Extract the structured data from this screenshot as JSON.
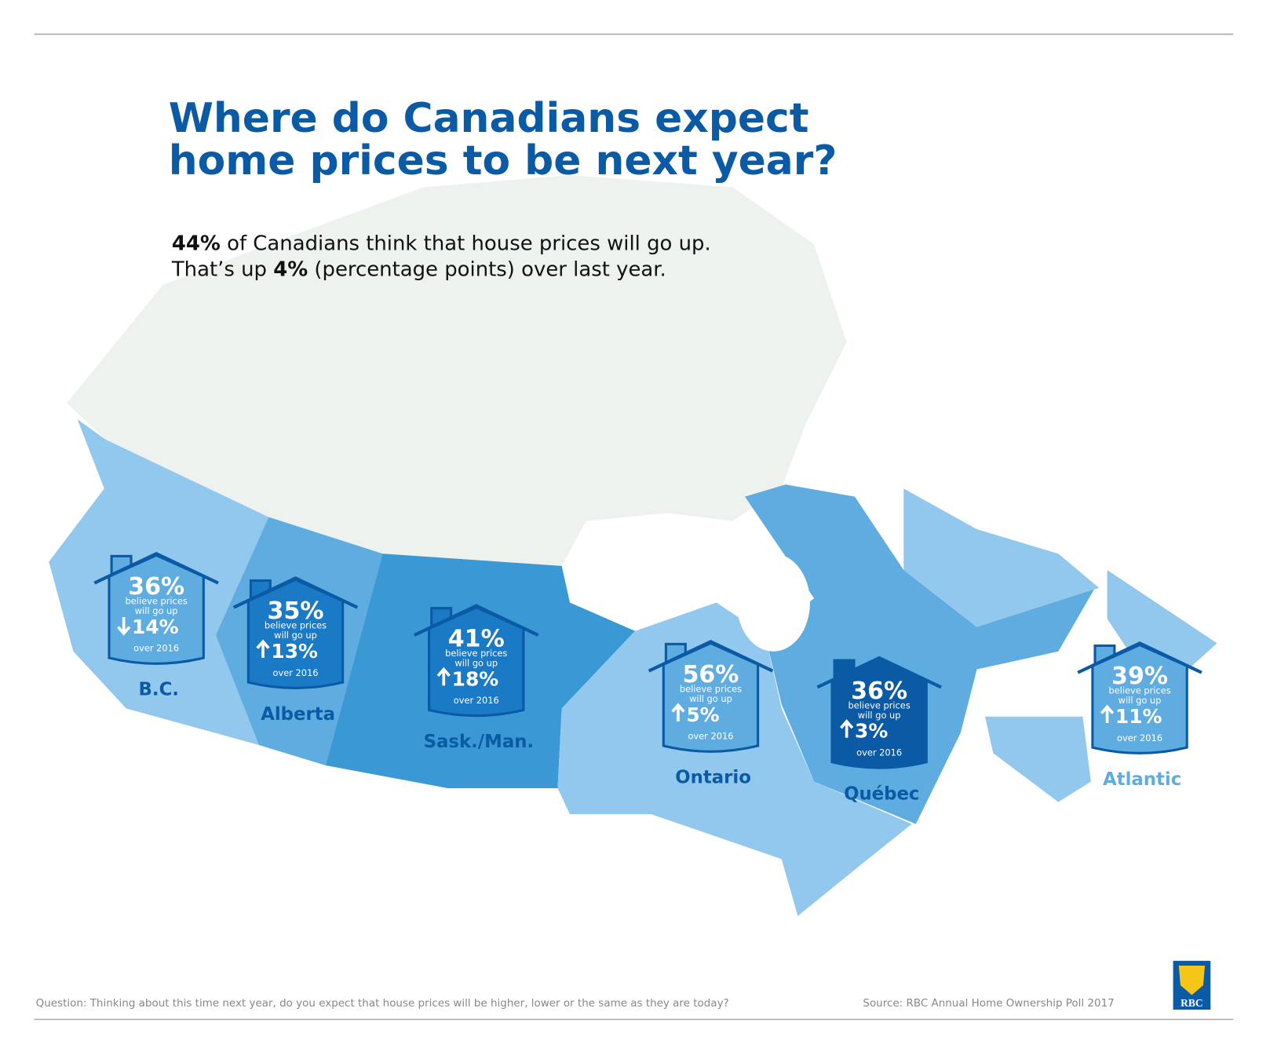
{
  "header": {
    "title_lines": [
      "Where do Canadians expect",
      "home prices to be next year?"
    ]
  },
  "summary": {
    "line1": {
      "bold": "44%",
      "rest": " of Canadians think that house prices will go up."
    },
    "line2": {
      "start": "That’s up ",
      "bold": "4%",
      "rest": " (percentage points) over last year."
    }
  },
  "regions": [
    {
      "name": "B.C.",
      "percent": "36%",
      "caption": [
        "believe prices",
        "will go up"
      ],
      "direction": "down",
      "change": "14%",
      "period": "over 2016",
      "house_color": "#5fade0",
      "label_color": "#0a5aa5"
    },
    {
      "name": "Alberta",
      "percent": "35%",
      "caption": [
        "believe prices",
        "will go up"
      ],
      "direction": "up",
      "change": "13%",
      "period": "over 2016",
      "house_color": "#1a7ac6",
      "label_color": "#0a5aa5"
    },
    {
      "name": "Sask./Man.",
      "percent": "41%",
      "caption": [
        "believe prices",
        "will go up"
      ],
      "direction": "up",
      "change": "18%",
      "period": "over 2016",
      "house_color": "#1a7ac6",
      "label_color": "#0a5aa5"
    },
    {
      "name": "Ontario",
      "percent": "56%",
      "caption": [
        "believe prices",
        "will go up"
      ],
      "direction": "up",
      "change": "5%",
      "period": "over 2016",
      "house_color": "#5fade0",
      "label_color": "#0a5aa5"
    },
    {
      "name": "Québec",
      "percent": "36%",
      "caption": [
        "believe prices",
        "will go up"
      ],
      "direction": "up",
      "change": "3%",
      "period": "over 2016",
      "house_color": "#0a5aa5",
      "label_color": "#0a5aa5"
    },
    {
      "name": "Atlantic",
      "percent": "39%",
      "caption": [
        "believe prices",
        "will go up"
      ],
      "direction": "up",
      "change": "11%",
      "period": "over 2016",
      "house_color": "#5fade0",
      "label_color": "#5fade0"
    }
  ],
  "footer": {
    "question": "Question: Thinking about this time next year, do you expect that house prices will be higher, lower or the same as they are today?",
    "source": "Source: RBC Annual Home Ownership Poll 2017",
    "logo": "RBC"
  }
}
